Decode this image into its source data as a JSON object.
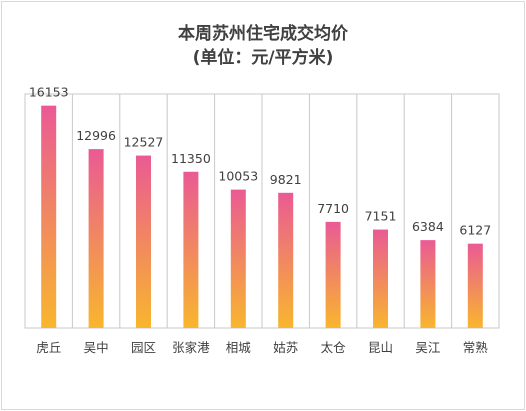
{
  "chart_data": {
    "type": "bar",
    "title": "本周苏州住宅成交均价",
    "subtitle": "(单位：元/平方米)",
    "xlabel": "",
    "ylabel": "",
    "categories": [
      "虎丘",
      "吴中",
      "园区",
      "张家港",
      "相城",
      "姑苏",
      "太仓",
      "昆山",
      "吴江",
      "常熟"
    ],
    "values": [
      16153,
      12996,
      12527,
      11350,
      10053,
      9821,
      7710,
      7151,
      6384,
      6127
    ],
    "ylim": [
      0,
      17000
    ],
    "grid": false,
    "legend": "none",
    "colors": {
      "bar_top": "#ea5a94",
      "bar_bottom": "#f8b62e",
      "text": "#404040",
      "axis": "#c8c8c8"
    }
  }
}
